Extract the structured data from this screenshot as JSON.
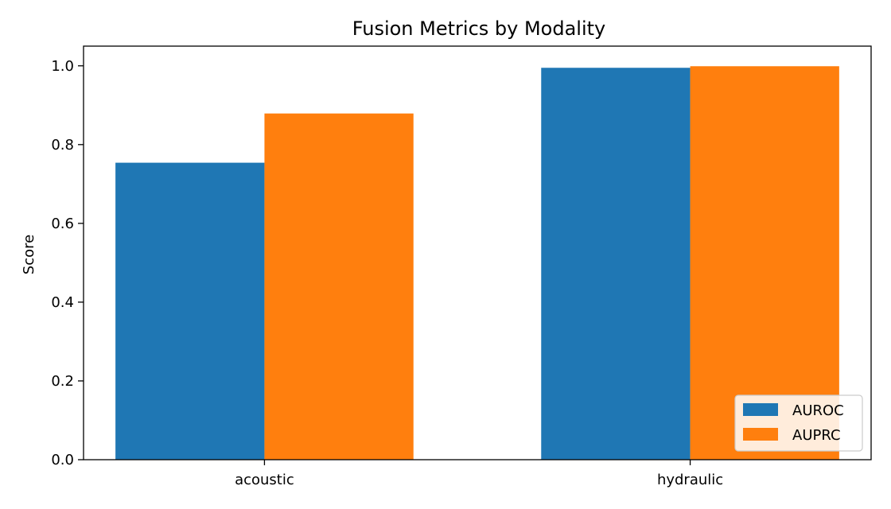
{
  "chart_data": {
    "type": "bar",
    "title": "Fusion Metrics by Modality",
    "xlabel": "",
    "ylabel": "Score",
    "categories": [
      "acoustic",
      "hydraulic"
    ],
    "series": [
      {
        "name": "AUROC",
        "color": "#1f77b4",
        "values": [
          0.754,
          0.995
        ]
      },
      {
        "name": "AUPRC",
        "color": "#ff7f0e",
        "values": [
          0.879,
          0.999
        ]
      }
    ],
    "ylim": [
      0,
      1.05
    ],
    "yticks": [
      "0.0",
      "0.2",
      "0.4",
      "0.6",
      "0.8",
      "1.0"
    ],
    "grid": false,
    "legend_position": "lower-right"
  }
}
